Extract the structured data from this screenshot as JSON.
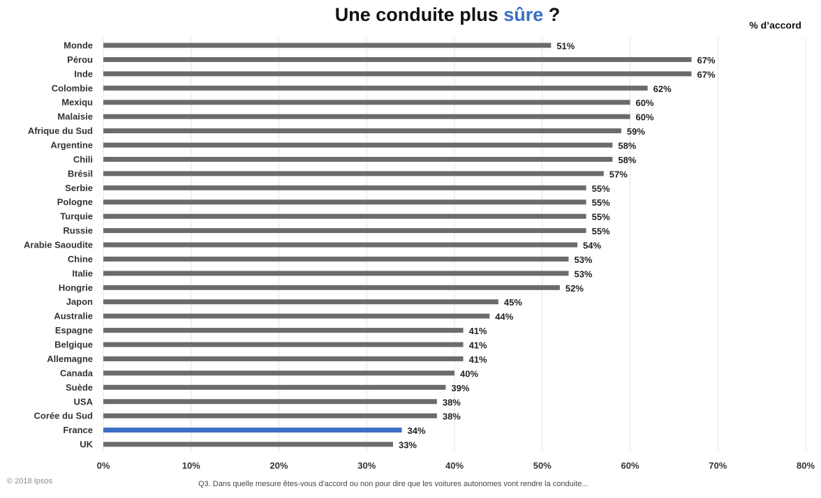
{
  "title": {
    "prefix": "Une conduite plus ",
    "accent": "sûre",
    "suffix": " ?"
  },
  "unit_label": "% d’accord",
  "copyright": "© 2018 Ipsos",
  "footnote": "Q3. Dans quelle mesure êtes-vous d'accord ou non pour dire que les voitures autonomes vont rendre la conduite...",
  "colors": {
    "bar": "#6b6b6b",
    "highlight": "#3a6fc4",
    "grid": "#e4e4e4"
  },
  "chart_data": {
    "type": "bar",
    "orientation": "horizontal",
    "title": "Une conduite plus sûre ?",
    "unit": "% d’accord",
    "categories": [
      "Monde",
      "Pérou",
      "Inde",
      "Colombie",
      "Mexiqu",
      "Malaisie",
      "Afrique du Sud",
      "Argentine",
      "Chili",
      "Brésil",
      "Serbie",
      "Pologne",
      "Turquie",
      "Russie",
      "Arabie Saoudite",
      "Chine",
      "Italie",
      "Hongrie",
      "Japon",
      "Australie",
      "Espagne",
      "Belgique",
      "Allemagne",
      "Canada",
      "Suède",
      "USA",
      "Corée du Sud",
      "France",
      "UK"
    ],
    "values": [
      51,
      67,
      67,
      62,
      60,
      60,
      59,
      58,
      58,
      57,
      55,
      55,
      55,
      55,
      54,
      53,
      53,
      52,
      45,
      44,
      41,
      41,
      41,
      40,
      39,
      38,
      38,
      34,
      33
    ],
    "value_labels": [
      "51%",
      "67%",
      "67%",
      "62%",
      "60%",
      "60%",
      "59%",
      "58%",
      "58%",
      "57%",
      "55%",
      "55%",
      "55%",
      "55%",
      "54%",
      "53%",
      "53%",
      "52%",
      "45%",
      "44%",
      "41%",
      "41%",
      "41%",
      "40%",
      "39%",
      "38%",
      "38%",
      "34%",
      "33%"
    ],
    "highlight_category": "France",
    "xlim": [
      0,
      80
    ],
    "xticks": [
      0,
      10,
      20,
      30,
      40,
      50,
      60,
      70,
      80
    ],
    "xtick_labels": [
      "0%",
      "10%",
      "20%",
      "30%",
      "40%",
      "50%",
      "60%",
      "70%",
      "80%"
    ],
    "grid": true,
    "legend": false
  }
}
